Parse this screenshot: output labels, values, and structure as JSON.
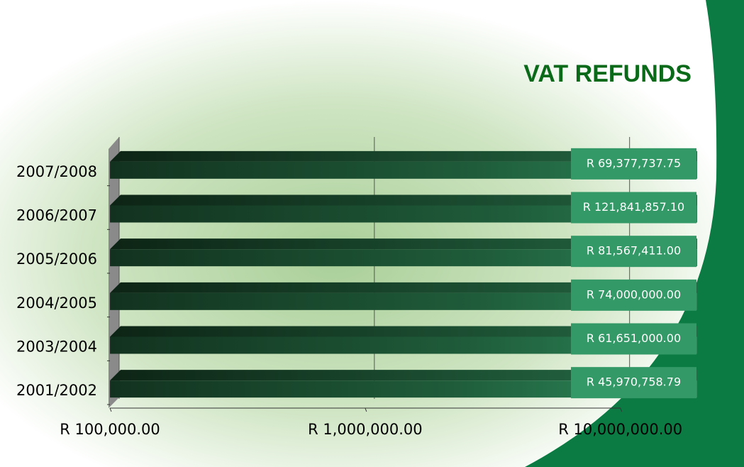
{
  "chart_data": {
    "type": "bar",
    "orientation": "horizontal",
    "title": "VAT REFUNDS",
    "categories": [
      "2007/2008",
      "2006/2007",
      "2005/2006",
      "2004/2005",
      "2003/2004",
      "2001/2002"
    ],
    "values": [
      69377737.75,
      121841857.1,
      81567411.0,
      74000000.0,
      61651000.0,
      45970758.79
    ],
    "value_labels": [
      "R  69,377,737.75",
      "R  121,841,857.10",
      "R  81,567,411.00",
      "R  74,000,000.00",
      "R  61,651,000.00",
      "R  45,970,758.79"
    ],
    "color": "#2e8b57",
    "xscale": "log",
    "xlim": [
      100000,
      20000000
    ],
    "xticks": [
      {
        "value": 100000,
        "label": "R  100,000.00"
      },
      {
        "value": 1000000,
        "label": "R  1,000,000.00"
      },
      {
        "value": 10000000,
        "label": "R  10,000,000.00"
      }
    ],
    "grid": true
  }
}
